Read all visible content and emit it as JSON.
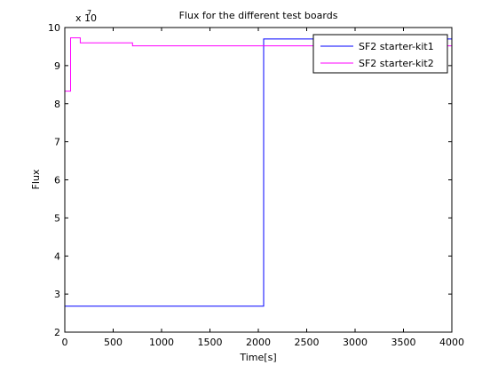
{
  "chart_data": {
    "type": "line",
    "title": "Flux for the different test boards",
    "xlabel": "Time[s]",
    "ylabel": "Flux",
    "exponent_base": "x 10",
    "exponent_power": "7",
    "xlim": [
      0,
      4000
    ],
    "ylim": [
      2,
      10
    ],
    "xticks": [
      0,
      500,
      1000,
      1500,
      2000,
      2500,
      3000,
      3500,
      4000
    ],
    "yticks": [
      2,
      3,
      4,
      5,
      6,
      7,
      8,
      9,
      10
    ],
    "grid": false,
    "legend_position": "top-right",
    "series": [
      {
        "name": "SF2 starter-kit1",
        "color": "#0000ff",
        "x": [
          0,
          2055,
          2055,
          4000
        ],
        "y": [
          2.68,
          2.68,
          9.7,
          9.7
        ]
      },
      {
        "name": "SF2 starter-kit2",
        "color": "#ff00ff",
        "x": [
          0,
          60,
          60,
          160,
          160,
          700,
          700,
          4000
        ],
        "y": [
          8.33,
          8.33,
          9.73,
          9.73,
          9.6,
          9.6,
          9.52,
          9.52
        ]
      }
    ]
  }
}
